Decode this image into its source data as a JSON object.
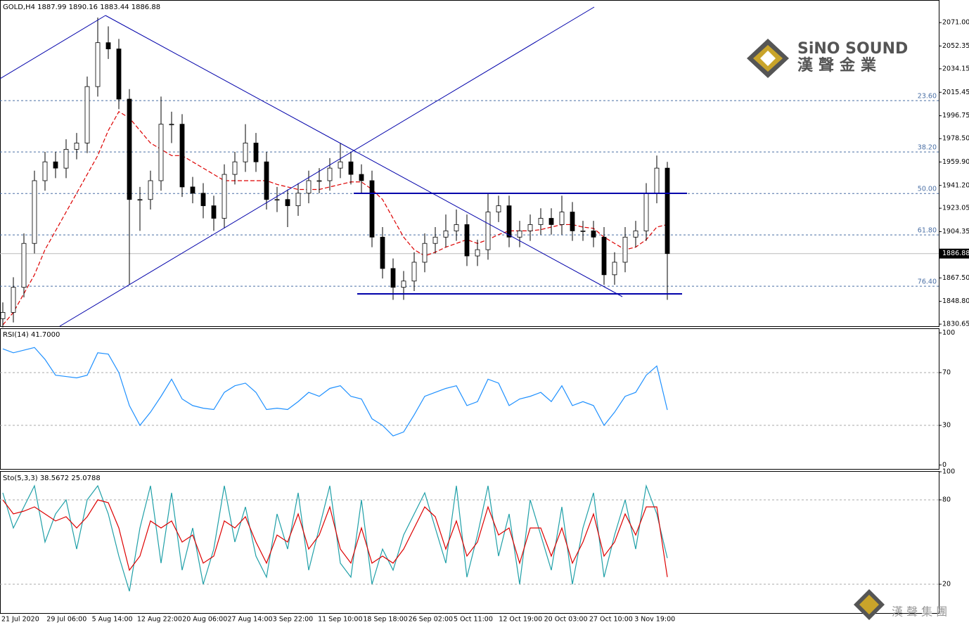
{
  "chart_data": [
    {
      "type": "candlestick",
      "title": "GOLD,H4  1887.99 1890.16 1883.44 1886.88",
      "open": [
        1835,
        1840,
        1860,
        1895,
        1945,
        1960,
        1955,
        1970,
        1975,
        2020,
        2055,
        2050,
        2010,
        1930,
        1930,
        1945,
        1990,
        1990,
        1940,
        1935,
        1925,
        1915,
        1950,
        1960,
        1975,
        1960,
        1930,
        1930,
        1925,
        1935,
        1945,
        1945,
        1955,
        1960,
        1950,
        1945,
        1900,
        1875,
        1860,
        1865,
        1880,
        1895,
        1900,
        1905,
        1910,
        1885,
        1890,
        1920,
        1925,
        1900,
        1905,
        1910,
        1915,
        1910,
        1920,
        1905,
        1905,
        1900,
        1870,
        1880,
        1900,
        1905,
        1935,
        1955
      ],
      "high": [
        1848,
        1868,
        1903,
        1953,
        1968,
        1968,
        1978,
        1983,
        2028,
        2075,
        2068,
        2058,
        2018,
        1940,
        1953,
        2012,
        2000,
        1998,
        1948,
        1943,
        1933,
        1958,
        1968,
        1990,
        1983,
        1968,
        1940,
        1938,
        1943,
        1953,
        1955,
        1963,
        1975,
        1968,
        1958,
        1953,
        1908,
        1883,
        1873,
        1888,
        1903,
        1908,
        1918,
        1922,
        1918,
        1898,
        1935,
        1933,
        1933,
        1913,
        1918,
        1923,
        1923,
        1933,
        1928,
        1913,
        1913,
        1908,
        1888,
        1908,
        1913,
        1943,
        1965,
        1960
      ],
      "low": [
        1828,
        1832,
        1852,
        1887,
        1937,
        1947,
        1947,
        1962,
        1967,
        2012,
        2042,
        2002,
        1862,
        1905,
        1922,
        1937,
        1975,
        1932,
        1927,
        1915,
        1905,
        1907,
        1942,
        1952,
        1952,
        1922,
        1920,
        1908,
        1917,
        1927,
        1935,
        1937,
        1947,
        1942,
        1935,
        1892,
        1867,
        1850,
        1850,
        1857,
        1872,
        1887,
        1892,
        1897,
        1877,
        1877,
        1882,
        1912,
        1892,
        1892,
        1897,
        1902,
        1902,
        1902,
        1897,
        1897,
        1892,
        1862,
        1862,
        1872,
        1892,
        1897,
        1927,
        1850
      ],
      "close": [
        1840,
        1860,
        1895,
        1945,
        1960,
        1955,
        1970,
        1975,
        2020,
        2055,
        2050,
        2010,
        1930,
        1930,
        1945,
        1990,
        1990,
        1940,
        1935,
        1925,
        1915,
        1950,
        1960,
        1975,
        1960,
        1930,
        1930,
        1925,
        1935,
        1945,
        1945,
        1955,
        1960,
        1950,
        1945,
        1900,
        1875,
        1860,
        1865,
        1880,
        1895,
        1900,
        1905,
        1910,
        1885,
        1890,
        1920,
        1925,
        1900,
        1905,
        1910,
        1915,
        1910,
        1920,
        1905,
        1905,
        1900,
        1870,
        1880,
        1900,
        1905,
        1935,
        1955,
        1886.88
      ],
      "ma": [
        1830,
        1840,
        1855,
        1870,
        1890,
        1905,
        1920,
        1935,
        1950,
        1965,
        1985,
        2000,
        1995,
        1985,
        1975,
        1970,
        1965,
        1965,
        1960,
        1955,
        1950,
        1945,
        1945,
        1945,
        1945,
        1945,
        1942,
        1940,
        1938,
        1938,
        1938,
        1940,
        1942,
        1944,
        1944,
        1938,
        1930,
        1915,
        1900,
        1890,
        1885,
        1888,
        1892,
        1895,
        1898,
        1895,
        1898,
        1902,
        1905,
        1905,
        1905,
        1906,
        1908,
        1910,
        1910,
        1908,
        1907,
        1900,
        1895,
        1890,
        1892,
        1898,
        1908,
        1910
      ],
      "ma_color": "#dd0000",
      "up_color": "#ffffff",
      "down_color": "#000000",
      "ylim": [
        1829,
        2089
      ],
      "yticks": [
        {
          "value": 2071,
          "label": "2071.00"
        },
        {
          "value": 2052.35,
          "label": "2052.35"
        },
        {
          "value": 2034.15,
          "label": "2034.15"
        },
        {
          "value": 2015.45,
          "label": "2015.45"
        },
        {
          "value": 1996.75,
          "label": "1996.75"
        },
        {
          "value": 1978.5,
          "label": "1978.50"
        },
        {
          "value": 1959.9,
          "label": "1959.90"
        },
        {
          "value": 1941.2,
          "label": "1941.20"
        },
        {
          "value": 1923.05,
          "label": "1923.05"
        },
        {
          "value": 1904.35,
          "label": "1904.35"
        },
        {
          "value": 1867.5,
          "label": "1867.50"
        },
        {
          "value": 1848.8,
          "label": "1848.80"
        },
        {
          "value": 1830.65,
          "label": "1830.65"
        }
      ],
      "current_price": 1886.88,
      "fib_levels": [
        {
          "value": 2008.8,
          "label": "23.60"
        },
        {
          "value": 1967.9,
          "label": "38.20"
        },
        {
          "value": 1934.8,
          "label": "50.00"
        },
        {
          "value": 1901.8,
          "label": "61.80"
        },
        {
          "value": 1860.9,
          "label": "76.40"
        }
      ],
      "fib_color": "#4a6fa5",
      "time_labels": [
        "21 Jul 2020",
        "29 Jul 06:00",
        "5 Aug 14:00",
        "12 Aug 22:00",
        "20 Aug 06:00",
        "27 Aug 14:00",
        "3 Sep 22:00",
        "11 Sep 10:00",
        "18 Sep 18:00",
        "26 Sep 02:00",
        "5 Oct 11:00",
        "12 Oct 19:00",
        "20 Oct 03:00",
        "27 Oct 10:00",
        "3 Nov 19:00"
      ]
    },
    {
      "type": "line",
      "title": "RSI(14) 41.7000",
      "color": "#1e90ff",
      "values": [
        88,
        85,
        87,
        89,
        80,
        68,
        67,
        66,
        68,
        85,
        84,
        70,
        45,
        30,
        40,
        52,
        65,
        50,
        45,
        43,
        42,
        55,
        60,
        62,
        55,
        42,
        43,
        42,
        48,
        55,
        52,
        58,
        60,
        52,
        50,
        35,
        30,
        22,
        25,
        38,
        52,
        55,
        58,
        60,
        45,
        48,
        65,
        62,
        45,
        50,
        52,
        55,
        48,
        60,
        45,
        48,
        45,
        30,
        40,
        52,
        55,
        68,
        75,
        41.7
      ],
      "ylim": [
        -3,
        103
      ],
      "yticks": [
        100,
        70,
        30,
        0
      ],
      "levels": [
        70,
        30
      ]
    },
    {
      "type": "line",
      "title": "Sto(5,3,3) 38.5672 25.0788",
      "series": [
        {
          "color": "#20a0a8",
          "values": [
            85,
            60,
            75,
            90,
            50,
            70,
            80,
            45,
            80,
            90,
            70,
            40,
            15,
            60,
            90,
            35,
            85,
            30,
            60,
            20,
            45,
            90,
            50,
            75,
            40,
            25,
            70,
            45,
            85,
            30,
            60,
            90,
            35,
            25,
            80,
            20,
            45,
            30,
            55,
            70,
            85,
            60,
            35,
            90,
            25,
            55,
            90,
            40,
            70,
            20,
            80,
            55,
            30,
            75,
            20,
            60,
            85,
            25,
            55,
            80,
            45,
            90,
            70,
            38.57
          ]
        },
        {
          "color": "#dd0000",
          "values": [
            80,
            70,
            72,
            75,
            70,
            65,
            68,
            60,
            68,
            80,
            78,
            60,
            30,
            40,
            65,
            60,
            65,
            50,
            55,
            35,
            40,
            65,
            60,
            68,
            50,
            35,
            55,
            50,
            70,
            45,
            55,
            75,
            45,
            35,
            60,
            35,
            40,
            35,
            45,
            60,
            75,
            68,
            45,
            65,
            40,
            50,
            75,
            55,
            60,
            35,
            60,
            60,
            40,
            60,
            35,
            50,
            70,
            40,
            50,
            70,
            55,
            75,
            75,
            25.08
          ]
        }
      ],
      "ylim": [
        0,
        100
      ],
      "yticks": [
        100,
        80,
        20
      ],
      "levels": [
        80,
        20
      ]
    }
  ],
  "logo": {
    "name": "SiNO SOUND",
    "chinese": "漢聲金業",
    "footer": "漢 聲 集 團"
  }
}
